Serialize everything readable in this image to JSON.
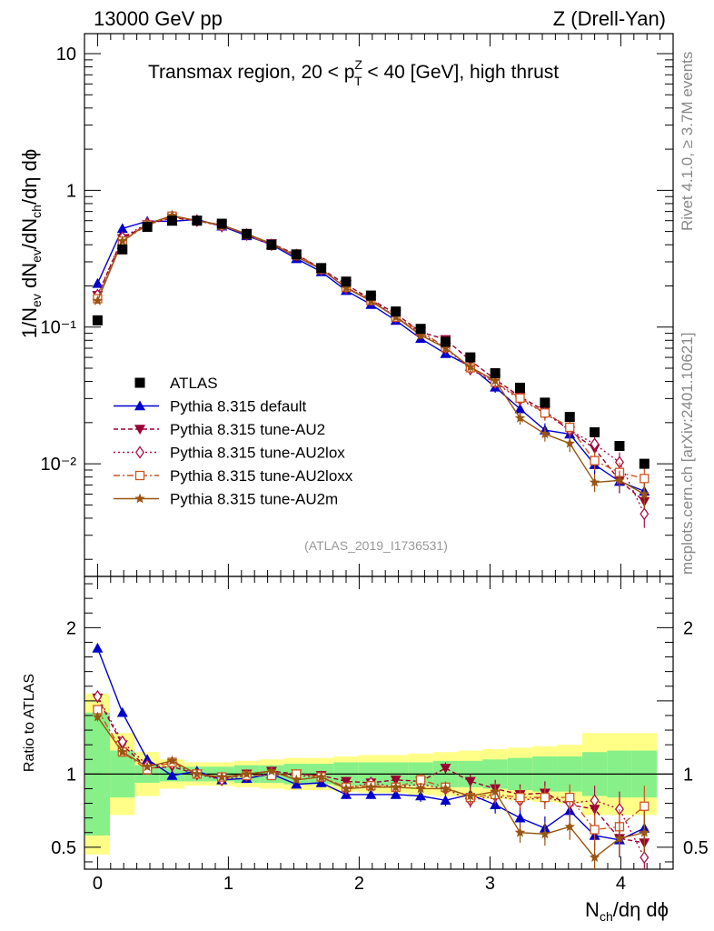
{
  "header": {
    "left": "13000 GeV pp",
    "right": "Z (Drell-Yan)"
  },
  "side_text": {
    "rivet": "Rivet 4.1.0, ≥ 3.7M events",
    "mcplots": "mcplots.cern.ch [arXiv:2401.10621]"
  },
  "chart_data": {
    "type": "line",
    "title": "Transmax region, 20 < p_T^Z < 40 [GeV], high thrust",
    "title_parts": {
      "pre": "Transmax region, 20 < p",
      "sup": "Z",
      "sub": "T",
      "post": " < 40 [GeV], high thrust"
    },
    "analysis_id": "(ATLAS_2019_I1736531)",
    "xlabel": {
      "base": "N",
      "sub": "ch",
      "post": "/dη dϕ"
    },
    "ylabel": {
      "text": "1/N_ev dN_ev/dN_ch/dη dϕ",
      "p1": "1/N",
      "s1": "ev",
      "p2": " dN",
      "s2": "ev",
      "p3": "/dN",
      "s3": "ch",
      "p4": "/dη dϕ"
    },
    "ratio_ylabel": "Ratio to ATLAS",
    "xlim": [
      -0.1,
      4.4
    ],
    "ylim": [
      0.0015,
      14
    ],
    "ratio_ylim": [
      0.35,
      2.35
    ],
    "x_ticks": [
      "0",
      "1",
      "2",
      "3",
      "4"
    ],
    "y_ticks": [
      "10",
      "1",
      "10⁻¹",
      "10⁻²"
    ],
    "ratio_ticks": [
      "2",
      "1",
      "0.5"
    ],
    "x": [
      0.0,
      0.19,
      0.38,
      0.57,
      0.76,
      0.95,
      1.14,
      1.33,
      1.52,
      1.71,
      1.9,
      2.09,
      2.28,
      2.47,
      2.66,
      2.85,
      3.04,
      3.23,
      3.42,
      3.61,
      3.8,
      3.99,
      4.18
    ],
    "data": {
      "name": "ATLAS",
      "values": [
        0.112,
        0.37,
        0.54,
        0.6,
        0.6,
        0.57,
        0.48,
        0.4,
        0.34,
        0.27,
        0.215,
        0.17,
        0.13,
        0.097,
        0.078,
        0.06,
        0.046,
        0.036,
        0.028,
        0.022,
        0.017,
        0.0135,
        0.01
      ],
      "ratio_band_green": [
        0.42,
        0.16,
        0.06,
        0.05,
        0.05,
        0.05,
        0.06,
        0.06,
        0.07,
        0.07,
        0.08,
        0.08,
        0.08,
        0.08,
        0.09,
        0.09,
        0.1,
        0.11,
        0.12,
        0.12,
        0.15,
        0.16,
        0.16
      ],
      "ratio_band_yellow": [
        0.55,
        0.28,
        0.15,
        0.1,
        0.08,
        0.08,
        0.09,
        0.1,
        0.11,
        0.11,
        0.12,
        0.13,
        0.13,
        0.14,
        0.15,
        0.16,
        0.17,
        0.18,
        0.19,
        0.2,
        0.28,
        0.28,
        0.28
      ]
    },
    "series": [
      {
        "name": "Pythia 8.315 default",
        "color": "#0000cc",
        "marker": "triangle-up",
        "dash": "",
        "ratios": [
          1.86,
          1.42,
          1.1,
          0.99,
          1.02,
          0.96,
          0.97,
          1.0,
          0.93,
          0.94,
          0.86,
          0.86,
          0.86,
          0.85,
          0.82,
          0.86,
          0.79,
          0.7,
          0.63,
          0.75,
          0.58,
          0.55,
          0.63
        ],
        "errors": [
          0.03,
          0.02,
          0.02,
          0.02,
          0.02,
          0.02,
          0.02,
          0.02,
          0.02,
          0.03,
          0.03,
          0.03,
          0.03,
          0.04,
          0.04,
          0.05,
          0.06,
          0.07,
          0.08,
          0.09,
          0.1,
          0.12,
          0.14
        ]
      },
      {
        "name": "Pythia 8.315 tune-AU2",
        "color": "#990033",
        "marker": "triangle-down",
        "dash": "5,3",
        "ratios": [
          1.52,
          1.2,
          1.04,
          1.05,
          1.0,
          0.97,
          1.0,
          1.02,
          1.0,
          0.99,
          0.95,
          0.94,
          0.96,
          0.95,
          1.04,
          0.95,
          0.9,
          0.86,
          0.87,
          0.79,
          0.76,
          0.56,
          0.53
        ],
        "errors": [
          0.03,
          0.02,
          0.02,
          0.02,
          0.02,
          0.02,
          0.02,
          0.02,
          0.02,
          0.03,
          0.03,
          0.03,
          0.03,
          0.04,
          0.04,
          0.05,
          0.06,
          0.07,
          0.08,
          0.09,
          0.1,
          0.12,
          0.14
        ]
      },
      {
        "name": "Pythia 8.315 tune-AU2lox",
        "color": "#aa1144",
        "marker": "diamond-open",
        "dash": "2,3",
        "ratios": [
          1.53,
          1.22,
          1.06,
          1.07,
          1.0,
          0.96,
          0.99,
          1.0,
          0.99,
          0.98,
          0.9,
          0.94,
          0.91,
          0.93,
          0.9,
          0.82,
          0.85,
          0.82,
          0.84,
          0.8,
          0.82,
          0.76,
          0.43
        ],
        "errors": [
          0.03,
          0.02,
          0.02,
          0.02,
          0.02,
          0.02,
          0.02,
          0.02,
          0.02,
          0.03,
          0.03,
          0.03,
          0.03,
          0.04,
          0.04,
          0.05,
          0.06,
          0.07,
          0.08,
          0.09,
          0.1,
          0.12,
          0.14
        ]
      },
      {
        "name": "Pythia 8.315 tune-AU2loxx",
        "color": "#cc5522",
        "marker": "square-open",
        "dash": "7,3,2,3",
        "ratios": [
          1.44,
          1.15,
          1.03,
          1.08,
          1.0,
          0.98,
          0.99,
          0.99,
          1.0,
          0.98,
          0.91,
          0.92,
          0.91,
          0.96,
          0.91,
          0.84,
          0.86,
          0.84,
          0.84,
          0.84,
          0.62,
          0.64,
          0.78
        ],
        "errors": [
          0.03,
          0.02,
          0.02,
          0.02,
          0.02,
          0.02,
          0.02,
          0.02,
          0.02,
          0.03,
          0.03,
          0.03,
          0.03,
          0.04,
          0.04,
          0.05,
          0.06,
          0.07,
          0.08,
          0.09,
          0.1,
          0.12,
          0.14
        ]
      },
      {
        "name": "Pythia 8.315 tune-AU2m",
        "color": "#995511",
        "marker": "star",
        "dash": "",
        "ratios": [
          1.39,
          1.15,
          1.05,
          1.09,
          1.0,
          0.98,
          1.0,
          1.02,
          0.96,
          0.98,
          0.9,
          0.91,
          0.91,
          0.9,
          0.9,
          0.85,
          0.88,
          0.6,
          0.59,
          0.64,
          0.43,
          0.56,
          0.6
        ],
        "errors": [
          0.03,
          0.02,
          0.02,
          0.02,
          0.02,
          0.02,
          0.02,
          0.02,
          0.02,
          0.03,
          0.03,
          0.03,
          0.03,
          0.04,
          0.04,
          0.05,
          0.06,
          0.07,
          0.08,
          0.09,
          0.1,
          0.12,
          0.14
        ]
      }
    ]
  }
}
